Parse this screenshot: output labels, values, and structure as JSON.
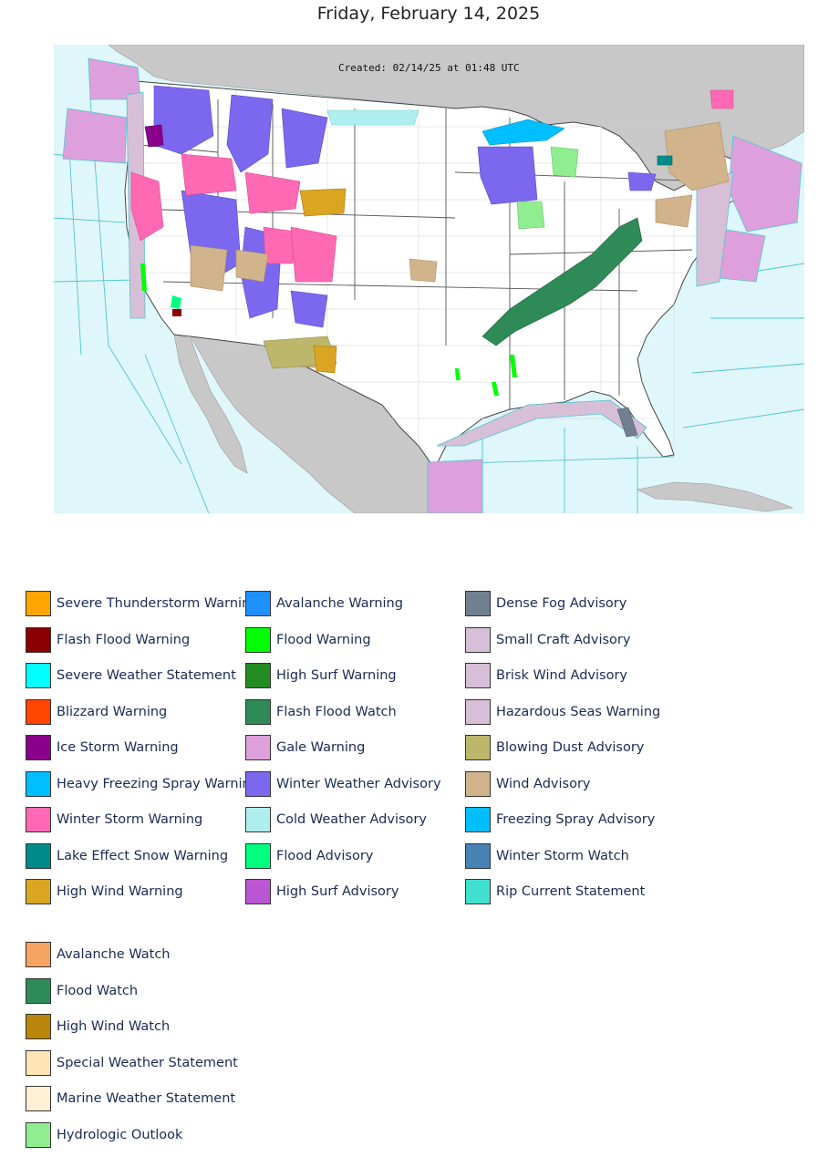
{
  "header": {
    "date": "Friday, February 14, 2025"
  },
  "map": {
    "created_stamp": "Created: 02/14/25 at 01:48 UTC",
    "colors": {
      "ocean": "#dff6fa",
      "land_foreign": "#c8c8c8",
      "land_us": "#ffffff",
      "county_lines": "#bdbdbd",
      "state_lines": "#444444",
      "marine_lines": "#4fc6d0"
    }
  },
  "legend": {
    "columns": [
      [
        {
          "label": "Severe Thunderstorm Warning",
          "color": "#FFA500"
        },
        {
          "label": "Flash Flood Warning",
          "color": "#8B0000"
        },
        {
          "label": "Severe Weather Statement",
          "color": "#00FFFF"
        },
        {
          "label": "Blizzard Warning",
          "color": "#FF4500"
        },
        {
          "label": "Ice Storm Warning",
          "color": "#8B008B"
        },
        {
          "label": "Heavy Freezing Spray Warning",
          "color": "#00BFFF"
        },
        {
          "label": "Winter Storm Warning",
          "color": "#FF69B4"
        },
        {
          "label": "Lake Effect Snow Warning",
          "color": "#008B8B"
        },
        {
          "label": "High Wind Warning",
          "color": "#DAA520"
        }
      ],
      [
        {
          "label": "Avalanche Warning",
          "color": "#1E90FF"
        },
        {
          "label": "Flood Warning",
          "color": "#00FF00"
        },
        {
          "label": "High Surf Warning",
          "color": "#228B22"
        },
        {
          "label": "Flash Flood Watch",
          "color": "#2E8B57"
        },
        {
          "label": "Gale Warning",
          "color": "#DDA0DD"
        },
        {
          "label": "Winter Weather Advisory",
          "color": "#7B68EE"
        },
        {
          "label": "Cold Weather Advisory",
          "color": "#AFEEEE"
        },
        {
          "label": "Flood Advisory",
          "color": "#00FF7F"
        },
        {
          "label": "High Surf Advisory",
          "color": "#BA55D3"
        }
      ],
      [
        {
          "label": "Dense Fog Advisory",
          "color": "#708090"
        },
        {
          "label": "Small Craft Advisory",
          "color": "#D8BFD8"
        },
        {
          "label": "Brisk Wind Advisory",
          "color": "#D8BFD8"
        },
        {
          "label": "Hazardous Seas Warning",
          "color": "#D8BFD8"
        },
        {
          "label": "Blowing Dust Advisory",
          "color": "#BDB76B"
        },
        {
          "label": "Wind Advisory",
          "color": "#D2B48C"
        },
        {
          "label": "Freezing Spray Advisory",
          "color": "#00BFFF"
        },
        {
          "label": "Winter Storm Watch",
          "color": "#4682B4"
        },
        {
          "label": "Rip Current Statement",
          "color": "#40E0D0"
        }
      ]
    ],
    "watches": [
      {
        "label": "Avalanche Watch",
        "color": "#F4A460"
      },
      {
        "label": "Flood Watch",
        "color": "#2E8B57"
      },
      {
        "label": "High Wind Watch",
        "color": "#B8860B"
      },
      {
        "label": "Special Weather Statement",
        "color": "#FFE4B5"
      },
      {
        "label": "Marine Weather Statement",
        "color": "#FFEFD5"
      },
      {
        "label": "Hydrologic Outlook",
        "color": "#90EE90"
      }
    ]
  }
}
